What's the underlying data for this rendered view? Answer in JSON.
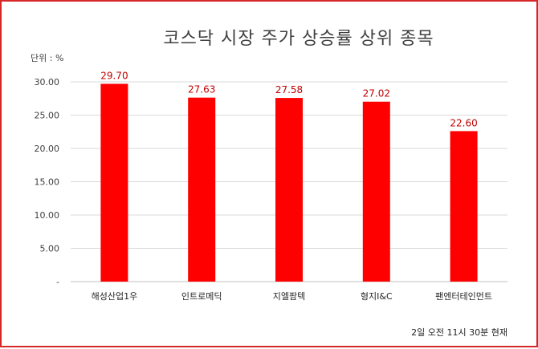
{
  "chart_data": {
    "type": "bar",
    "title": "코스닥 시장 주가 상승률 상위 종목",
    "unit_label": "단위 : %",
    "note": "2일 오전 11시 30분 현재",
    "categories": [
      "해성산업1우",
      "인트로메딕",
      "지엘팜텍",
      "형지I&C",
      "팬엔터테인먼트"
    ],
    "values": [
      29.7,
      27.63,
      27.58,
      27.02,
      22.6
    ],
    "data_labels": [
      "29.70",
      "27.63",
      "27.58",
      "27.02",
      "22.60"
    ],
    "y_ticks": [
      {
        "value": 0,
        "label": "-"
      },
      {
        "value": 5,
        "label": "5.00"
      },
      {
        "value": 10,
        "label": "10.00"
      },
      {
        "value": 15,
        "label": "15.00"
      },
      {
        "value": 20,
        "label": "20.00"
      },
      {
        "value": 25,
        "label": "25.00"
      },
      {
        "value": 30,
        "label": "30.00"
      }
    ],
    "ylim": [
      0,
      30
    ],
    "grid": true,
    "bar_color": "#ff0000",
    "label_color": "#c00000",
    "frame_color": "#d62828"
  }
}
